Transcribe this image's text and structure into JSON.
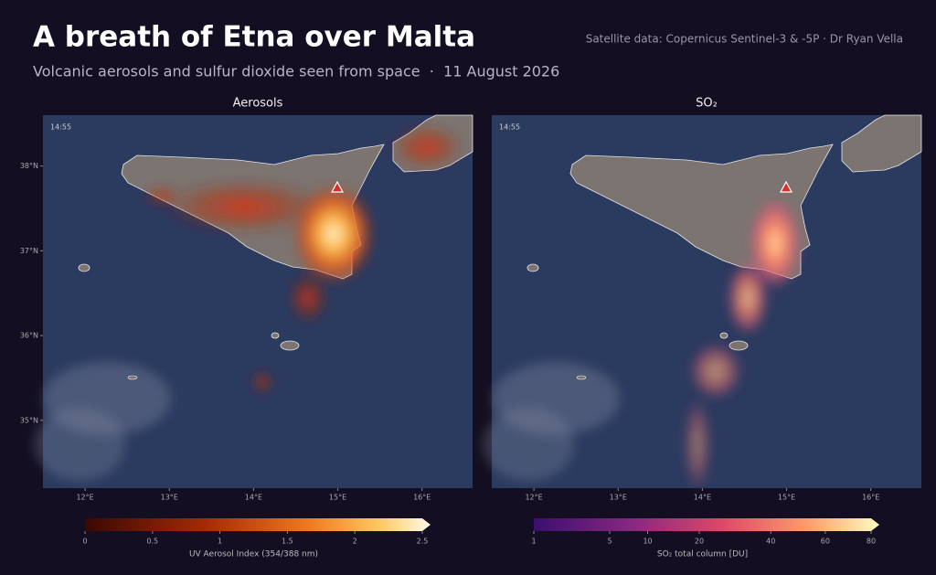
{
  "header": {
    "title": "A breath of Etna over Malta",
    "subtitle": "Volcanic aerosols and sulfur dioxide seen from space  ·  11 August 2026",
    "credit": "Satellite data: Copernicus Sentinel-3 & -5P  ·  Dr Ryan Vella"
  },
  "map": {
    "lon_range": [
      11.5,
      16.6
    ],
    "lat_range": [
      34.2,
      38.6
    ],
    "lon_ticks": [
      {
        "value": 12,
        "label": "12°E"
      },
      {
        "value": 13,
        "label": "13°E"
      },
      {
        "value": 14,
        "label": "14°E"
      },
      {
        "value": 15,
        "label": "15°E"
      },
      {
        "value": 16,
        "label": "16°E"
      }
    ],
    "lat_ticks": [
      {
        "value": 38,
        "label": "38°N"
      },
      {
        "value": 37,
        "label": "37°N"
      },
      {
        "value": 36,
        "label": "36°N"
      },
      {
        "value": 35,
        "label": "35°N"
      }
    ]
  },
  "panels": [
    {
      "title": "Aerosols",
      "time": "14:55",
      "colorbar": {
        "label": "UV Aerosol Index (354/388 nm)",
        "range": [
          0,
          2.5
        ],
        "ticks": [
          0,
          0.5,
          1,
          1.5,
          2,
          2.5
        ],
        "norm": "linear"
      }
    },
    {
      "title": "SO₂",
      "time": "14:55",
      "colorbar": {
        "label": "SO₂ total column [DU]",
        "range": [
          1,
          80
        ],
        "ticks": [
          1,
          5,
          10,
          20,
          40,
          60,
          80
        ],
        "norm": "power",
        "gamma": 0.5
      }
    }
  ]
}
